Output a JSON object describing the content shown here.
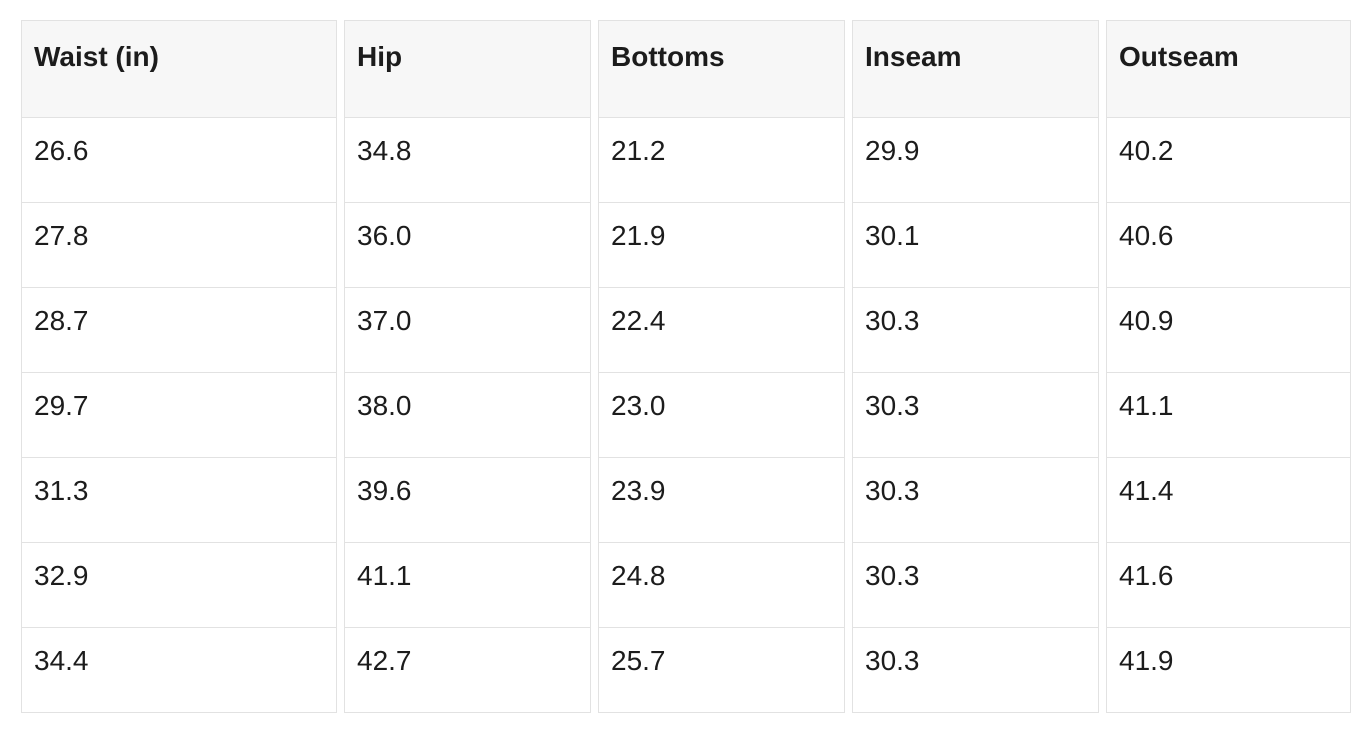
{
  "page": {
    "background": "#ffffff"
  },
  "table": {
    "columns": [
      "Waist (in)",
      "Hip",
      "Bottoms",
      "Inseam",
      "Outseam"
    ],
    "rows": [
      [
        "26.6",
        "34.8",
        "21.2",
        "29.9",
        "40.2"
      ],
      [
        "27.8",
        "36.0",
        "21.9",
        "30.1",
        "40.6"
      ],
      [
        "28.7",
        "37.0",
        "22.4",
        "30.3",
        "40.9"
      ],
      [
        "29.7",
        "38.0",
        "23.0",
        "30.3",
        "41.1"
      ],
      [
        "31.3",
        "39.6",
        "23.9",
        "30.3",
        "41.4"
      ],
      [
        "32.9",
        "41.1",
        "24.8",
        "30.3",
        "41.6"
      ],
      [
        "34.4",
        "42.7",
        "25.7",
        "30.3",
        "41.9"
      ]
    ],
    "colors": {
      "header_bg": "#f7f7f7",
      "border": "#e2e2e2",
      "text": "#1c1c1c",
      "cell_bg": "#ffffff"
    }
  },
  "chart_data": {
    "type": "table",
    "title": "",
    "columns": [
      "Waist (in)",
      "Hip",
      "Bottoms",
      "Inseam",
      "Outseam"
    ],
    "rows": [
      [
        26.6,
        34.8,
        21.2,
        29.9,
        40.2
      ],
      [
        27.8,
        36.0,
        21.9,
        30.1,
        40.6
      ],
      [
        28.7,
        37.0,
        22.4,
        30.3,
        40.9
      ],
      [
        29.7,
        38.0,
        23.0,
        30.3,
        41.1
      ],
      [
        31.3,
        39.6,
        23.9,
        30.3,
        41.4
      ],
      [
        32.9,
        41.1,
        24.8,
        30.3,
        41.6
      ],
      [
        34.4,
        42.7,
        25.7,
        30.3,
        41.9
      ]
    ],
    "layout": {
      "header_background": "#f7f7f7",
      "grid": "light-gray cell borders with white gaps between columns",
      "units": "inches"
    }
  }
}
